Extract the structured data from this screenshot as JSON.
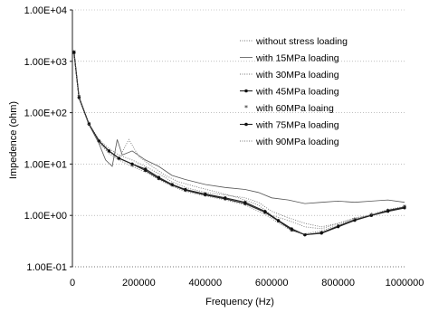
{
  "chart_data": {
    "type": "line",
    "title": "",
    "xlabel": "Frequency (Hz)",
    "ylabel": "Impedence (ohm)",
    "xlim": [
      0,
      1000000
    ],
    "ylim": [
      0.1,
      10000
    ],
    "y_scale": "log",
    "x_ticks": [
      "0",
      "200000",
      "400000",
      "600000",
      "800000",
      "1000000"
    ],
    "y_ticks": [
      "1.00E-01",
      "1.00E+00",
      "1.00E+01",
      "1.00E+02",
      "1.00E+03",
      "1.00E+04"
    ],
    "grid": true,
    "legend_position": "top-right",
    "series": [
      {
        "name": "without stress loading",
        "style": "dotted",
        "points": [
          [
            5000,
            1500
          ],
          [
            20000,
            200
          ],
          [
            50000,
            60
          ],
          [
            80000,
            30
          ],
          [
            110000,
            20
          ],
          [
            140000,
            15
          ],
          [
            180000,
            12
          ],
          [
            220000,
            9
          ],
          [
            260000,
            6.5
          ],
          [
            300000,
            4.5
          ],
          [
            340000,
            3.5
          ],
          [
            400000,
            2.8
          ],
          [
            460000,
            2.5
          ],
          [
            520000,
            2.2
          ],
          [
            560000,
            1.8
          ],
          [
            600000,
            1.2
          ],
          [
            650000,
            0.9
          ],
          [
            700000,
            0.7
          ],
          [
            750000,
            0.6
          ],
          [
            800000,
            0.7
          ],
          [
            850000,
            0.9
          ],
          [
            900000,
            1.0
          ],
          [
            950000,
            1.2
          ],
          [
            1000000,
            1.4
          ]
        ]
      },
      {
        "name": "with 15MPa loading",
        "style": "thin",
        "points": [
          [
            5000,
            1400
          ],
          [
            20000,
            190
          ],
          [
            50000,
            58
          ],
          [
            80000,
            25
          ],
          [
            100000,
            12
          ],
          [
            120000,
            9
          ],
          [
            135000,
            30
          ],
          [
            150000,
            15
          ],
          [
            180000,
            18
          ],
          [
            220000,
            12
          ],
          [
            260000,
            9
          ],
          [
            300000,
            6
          ],
          [
            340000,
            5
          ],
          [
            400000,
            4
          ],
          [
            460000,
            3.5
          ],
          [
            520000,
            3.2
          ],
          [
            560000,
            2.8
          ],
          [
            600000,
            2.2
          ],
          [
            650000,
            2.0
          ],
          [
            700000,
            1.7
          ],
          [
            750000,
            1.8
          ],
          [
            800000,
            1.9
          ],
          [
            850000,
            1.8
          ],
          [
            900000,
            1.9
          ],
          [
            950000,
            2.0
          ],
          [
            1000000,
            1.8
          ]
        ]
      },
      {
        "name": "with 30MPa loading",
        "style": "dotted",
        "points": [
          [
            5000,
            1450
          ],
          [
            20000,
            195
          ],
          [
            50000,
            59
          ],
          [
            80000,
            27
          ],
          [
            110000,
            17
          ],
          [
            140000,
            13
          ],
          [
            170000,
            30
          ],
          [
            200000,
            14
          ],
          [
            240000,
            9
          ],
          [
            280000,
            6
          ],
          [
            320000,
            4.5
          ],
          [
            380000,
            3.5
          ],
          [
            440000,
            2.8
          ],
          [
            500000,
            2.2
          ],
          [
            560000,
            1.6
          ],
          [
            600000,
            1.0
          ],
          [
            650000,
            0.8
          ],
          [
            700000,
            0.6
          ],
          [
            750000,
            0.55
          ],
          [
            800000,
            0.7
          ],
          [
            850000,
            0.85
          ],
          [
            900000,
            1.0
          ],
          [
            950000,
            1.2
          ],
          [
            1000000,
            1.4
          ]
        ]
      },
      {
        "name": "with 45MPa loading",
        "style": "line-marker",
        "points": [
          [
            5000,
            1500
          ],
          [
            20000,
            200
          ],
          [
            50000,
            60
          ],
          [
            80000,
            28
          ],
          [
            110000,
            18
          ],
          [
            140000,
            13
          ],
          [
            180000,
            10
          ],
          [
            220000,
            8
          ],
          [
            260000,
            5.5
          ],
          [
            300000,
            4.0
          ],
          [
            340000,
            3.2
          ],
          [
            400000,
            2.6
          ],
          [
            460000,
            2.2
          ],
          [
            520000,
            1.8
          ],
          [
            580000,
            1.2
          ],
          [
            620000,
            0.8
          ],
          [
            660000,
            0.55
          ],
          [
            700000,
            0.42
          ],
          [
            750000,
            0.45
          ],
          [
            800000,
            0.6
          ],
          [
            850000,
            0.8
          ],
          [
            900000,
            1.0
          ],
          [
            950000,
            1.2
          ],
          [
            1000000,
            1.4
          ]
        ]
      },
      {
        "name": "with 60MPa loaing",
        "style": "marker",
        "points": [
          [
            5000,
            1480
          ],
          [
            20000,
            198
          ],
          [
            50000,
            59
          ],
          [
            80000,
            27
          ],
          [
            110000,
            17
          ],
          [
            140000,
            12
          ],
          [
            180000,
            9
          ],
          [
            220000,
            7
          ],
          [
            260000,
            5
          ],
          [
            300000,
            3.8
          ],
          [
            340000,
            3.0
          ],
          [
            400000,
            2.5
          ],
          [
            460000,
            2.0
          ],
          [
            520000,
            1.6
          ],
          [
            580000,
            1.1
          ],
          [
            620000,
            0.75
          ],
          [
            660000,
            0.5
          ],
          [
            700000,
            0.4
          ],
          [
            750000,
            0.45
          ],
          [
            800000,
            0.6
          ],
          [
            850000,
            0.8
          ],
          [
            900000,
            1.0
          ],
          [
            950000,
            1.2
          ],
          [
            1000000,
            1.45
          ]
        ]
      },
      {
        "name": "with 75MPa loading",
        "style": "line-marker",
        "points": [
          [
            5000,
            1460
          ],
          [
            20000,
            196
          ],
          [
            50000,
            60
          ],
          [
            80000,
            28
          ],
          [
            110000,
            18
          ],
          [
            140000,
            13
          ],
          [
            180000,
            10
          ],
          [
            220000,
            7.5
          ],
          [
            260000,
            5.2
          ],
          [
            300000,
            3.9
          ],
          [
            340000,
            3.1
          ],
          [
            400000,
            2.5
          ],
          [
            460000,
            2.1
          ],
          [
            520000,
            1.7
          ],
          [
            580000,
            1.15
          ],
          [
            620000,
            0.78
          ],
          [
            660000,
            0.52
          ],
          [
            700000,
            0.42
          ],
          [
            750000,
            0.46
          ],
          [
            800000,
            0.62
          ],
          [
            850000,
            0.82
          ],
          [
            900000,
            1.0
          ],
          [
            950000,
            1.25
          ],
          [
            1000000,
            1.45
          ]
        ]
      },
      {
        "name": "with 90MPa loading",
        "style": "dotted",
        "points": [
          [
            5000,
            1420
          ],
          [
            20000,
            192
          ],
          [
            50000,
            58
          ],
          [
            80000,
            26
          ],
          [
            110000,
            16
          ],
          [
            140000,
            12
          ],
          [
            180000,
            9
          ],
          [
            220000,
            7
          ],
          [
            260000,
            5
          ],
          [
            300000,
            3.7
          ],
          [
            340000,
            2.9
          ],
          [
            400000,
            2.4
          ],
          [
            460000,
            2.0
          ],
          [
            520000,
            1.6
          ],
          [
            580000,
            1.05
          ],
          [
            620000,
            0.72
          ],
          [
            660000,
            0.5
          ],
          [
            700000,
            0.44
          ],
          [
            750000,
            0.5
          ],
          [
            800000,
            0.65
          ],
          [
            850000,
            0.85
          ],
          [
            900000,
            1.05
          ],
          [
            950000,
            1.3
          ],
          [
            1000000,
            1.5
          ]
        ]
      }
    ]
  }
}
